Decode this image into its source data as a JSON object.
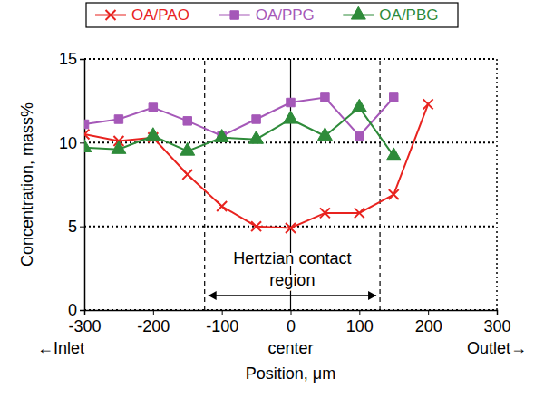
{
  "chart_data": {
    "type": "line",
    "x_label": "Position, μm",
    "y_label": "Concentration, mass%",
    "x": [
      -300,
      -250,
      -200,
      -150,
      -100,
      -50,
      0,
      50,
      100,
      150,
      200
    ],
    "series": [
      {
        "name": "OA/PAO",
        "color": "#e8231f",
        "marker": "x",
        "values": [
          10.5,
          10.1,
          10.3,
          8.1,
          6.2,
          5,
          4.9,
          5.8,
          5.8,
          6.9,
          12.3
        ]
      },
      {
        "name": "OA/PPG",
        "color": "#a558b8",
        "marker": "square",
        "values": [
          11.1,
          11.4,
          12.1,
          11.3,
          10.4,
          11.4,
          12.4,
          12.7,
          10.4,
          12.7,
          null
        ]
      },
      {
        "name": "OA/PBG",
        "color": "#2e8b3a",
        "marker": "triangle",
        "values": [
          9.7,
          9.6,
          10.4,
          9.5,
          10.3,
          10.2,
          11.4,
          10.4,
          12.1,
          9.2,
          null
        ]
      }
    ],
    "xlim": [
      -300,
      300
    ],
    "xticks": [
      -300,
      -200,
      -100,
      0,
      100,
      200,
      300
    ],
    "ylim": [
      0,
      15
    ],
    "yticks": [
      0,
      5,
      10,
      15
    ],
    "grid": true,
    "legend": "top",
    "x_sublabels": [
      {
        "value": -300,
        "label": "←Inlet"
      },
      {
        "value": 0,
        "label": "center"
      },
      {
        "value": 300,
        "label": "Outlet→"
      }
    ],
    "center_line": 0,
    "contact_region": [
      -125,
      130
    ],
    "annotation": [
      "Hertzian contact",
      "region"
    ]
  }
}
